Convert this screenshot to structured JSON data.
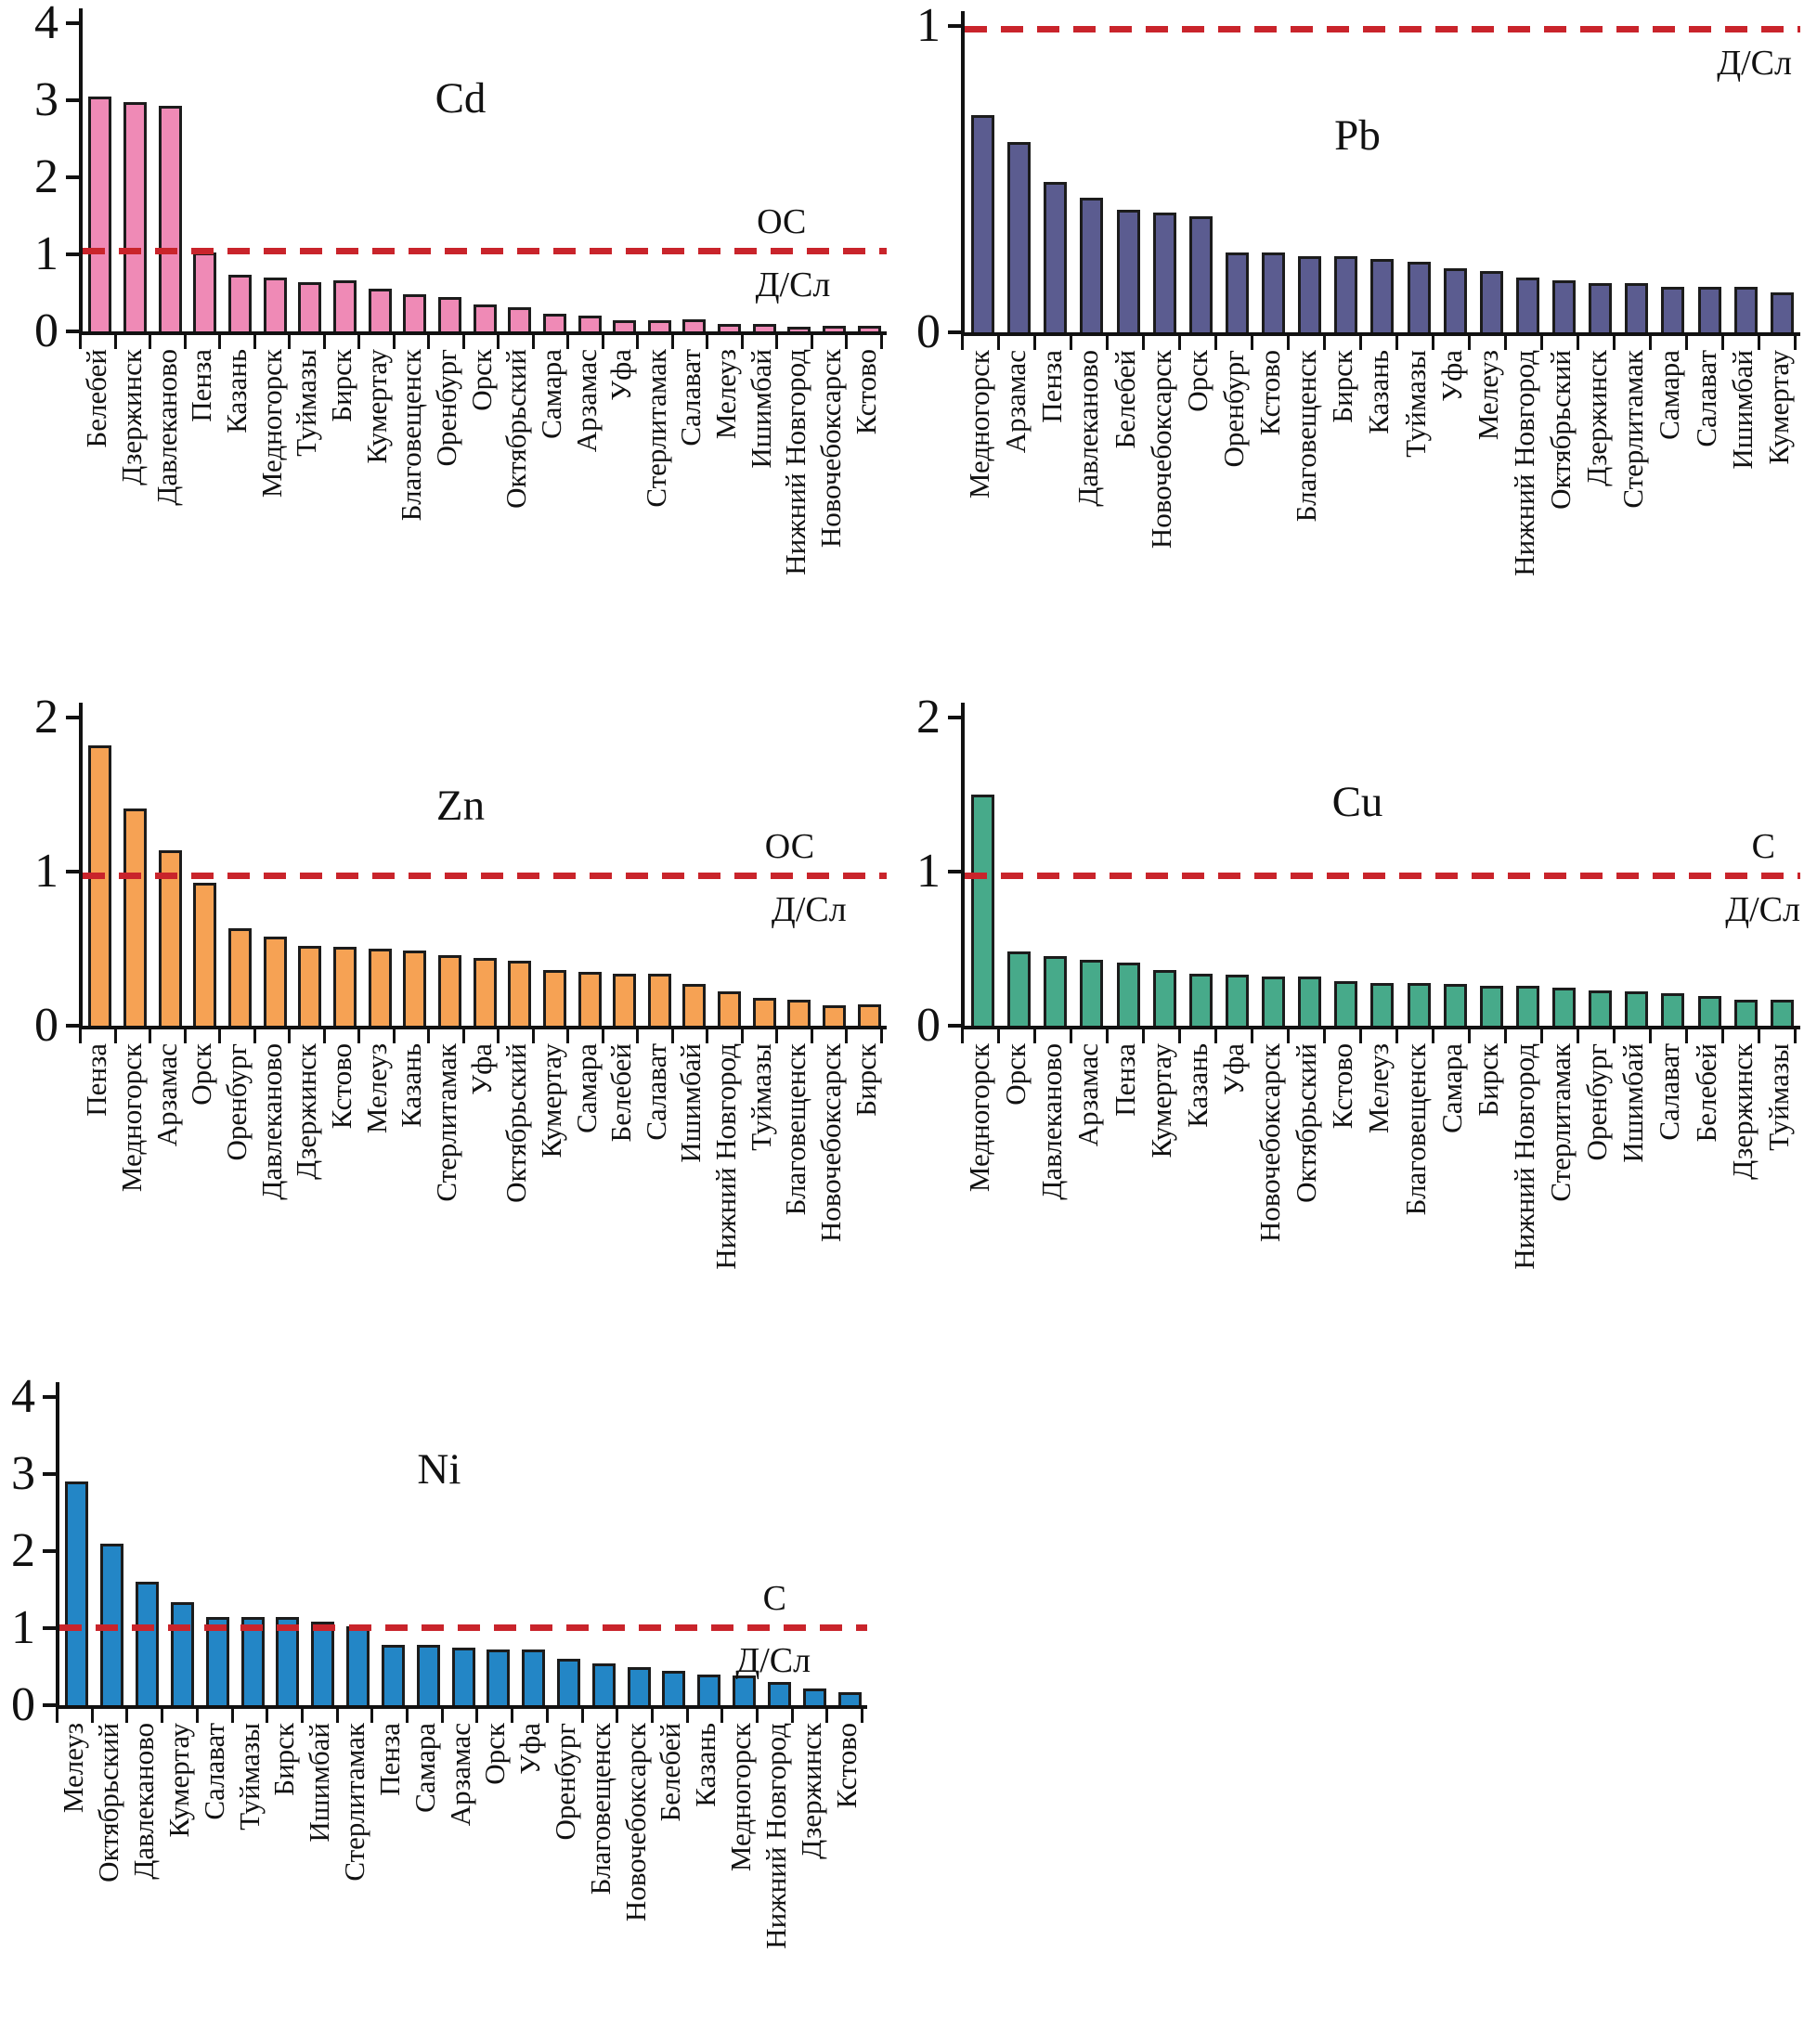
{
  "figure": {
    "background_hex": "#ffffff",
    "axis_color_hex": "#111111",
    "bar_border_hex": "#1c1c1c",
    "threshold_color_hex": "#c9242b"
  },
  "chart_data": [
    {
      "type": "bar",
      "panel": "top-left",
      "title": "Cd",
      "ylim": [
        0,
        4
      ],
      "yticks": [
        0,
        1,
        2,
        3,
        4
      ],
      "bar_color_hex": "#ef8ab6",
      "threshold_line": {
        "value": 1.0,
        "color_hex": "#c9242b",
        "label_above": "ОС",
        "label_below": "Д/Сл"
      },
      "categories": [
        "Белебей",
        "Дзержинск",
        "Давлеканово",
        "Пенза",
        "Казань",
        "Медногорск",
        "Туймазы",
        "Бирск",
        "Кумертау",
        "Благовещенск",
        "Оренбург",
        "Орск",
        "Октябрьский",
        "Самара",
        "Арзамас",
        "Уфа",
        "Стерлитамак",
        "Салават",
        "Мелеуз",
        "Ишимбай",
        "Нижний Новгород",
        "Новочебоксарск",
        "Кстово"
      ],
      "values": [
        3.05,
        2.98,
        2.93,
        1.02,
        0.74,
        0.7,
        0.64,
        0.66,
        0.55,
        0.48,
        0.44,
        0.35,
        0.31,
        0.23,
        0.21,
        0.15,
        0.15,
        0.16,
        0.1,
        0.1,
        0.06,
        0.07,
        0.07
      ]
    },
    {
      "type": "bar",
      "panel": "top-right",
      "title": "Pb",
      "ylim": [
        0,
        1
      ],
      "yticks": [
        0,
        1
      ],
      "bar_color_hex": "#5b5c90",
      "threshold_line": {
        "value": 1.0,
        "color_hex": "#c9242b",
        "label_above": "",
        "label_below": "Д/Сл"
      },
      "categories": [
        "Медногорск",
        "Арзамас",
        "Пенза",
        "Давлеканово",
        "Белебей",
        "Новочебоксарск",
        "Орск",
        "Оренбург",
        "Кстово",
        "Благовещенск",
        "Бирск",
        "Казань",
        "Туймазы",
        "Уфа",
        "Мелеуз",
        "Нижний Новгород",
        "Октябрьский",
        "Дзержинск",
        "Стерлитамак",
        "Самара",
        "Салават",
        "Ишимбай",
        "Кумертау"
      ],
      "values": [
        0.71,
        0.62,
        0.49,
        0.44,
        0.4,
        0.39,
        0.38,
        0.26,
        0.26,
        0.25,
        0.25,
        0.24,
        0.23,
        0.21,
        0.2,
        0.18,
        0.17,
        0.16,
        0.16,
        0.15,
        0.15,
        0.15,
        0.13
      ]
    },
    {
      "type": "bar",
      "panel": "middle-left",
      "title": "Zn",
      "ylim": [
        0,
        2
      ],
      "yticks": [
        0,
        1,
        2
      ],
      "bar_color_hex": "#f6a254",
      "threshold_line": {
        "value": 0.95,
        "color_hex": "#c9242b",
        "label_above": "ОС",
        "label_below": "Д/Сл"
      },
      "categories": [
        "Пенза",
        "Медногорск",
        "Арзамас",
        "Орск",
        "Оренбург",
        "Давлеканово",
        "Дзержинск",
        "Кстово",
        "Мелеуз",
        "Казань",
        "Стерлитамак",
        "Уфа",
        "Октябрьский",
        "Кумертау",
        "Самара",
        "Белебей",
        "Салават",
        "Ишимбай",
        "Нижний Новгород",
        "Туймазы",
        "Благовещенск",
        "Новочебоксарск",
        "Бирск"
      ],
      "values": [
        1.82,
        1.41,
        1.14,
        0.93,
        0.63,
        0.58,
        0.52,
        0.51,
        0.5,
        0.49,
        0.46,
        0.44,
        0.42,
        0.36,
        0.35,
        0.34,
        0.34,
        0.27,
        0.22,
        0.18,
        0.17,
        0.13,
        0.14
      ]
    },
    {
      "type": "bar",
      "panel": "middle-right",
      "title": "Cu",
      "ylim": [
        0,
        2
      ],
      "yticks": [
        0,
        1,
        2
      ],
      "bar_color_hex": "#47aa8a",
      "threshold_line": {
        "value": 0.95,
        "color_hex": "#c9242b",
        "label_above": "С",
        "label_below": "Д/Сл"
      },
      "categories": [
        "Медногорск",
        "Орск",
        "Давлеканово",
        "Арзамас",
        "Пенза",
        "Кумертау",
        "Казань",
        "Уфа",
        "Новочебоксарск",
        "Октябрьский",
        "Кстово",
        "Мелеуз",
        "Благовещенск",
        "Самара",
        "Бирск",
        "Нижний Новгород",
        "Стерлитамак",
        "Оренбург",
        "Ишимбай",
        "Салават",
        "Белебей",
        "Дзержинск",
        "Туймазы"
      ],
      "values": [
        1.5,
        0.48,
        0.45,
        0.43,
        0.41,
        0.36,
        0.34,
        0.33,
        0.32,
        0.32,
        0.29,
        0.28,
        0.28,
        0.27,
        0.26,
        0.26,
        0.25,
        0.23,
        0.22,
        0.21,
        0.19,
        0.17,
        0.17
      ]
    },
    {
      "type": "bar",
      "panel": "bottom-left",
      "title": "Ni",
      "ylim": [
        0,
        4
      ],
      "yticks": [
        0,
        1,
        2,
        3,
        4
      ],
      "bar_color_hex": "#2386c6",
      "threshold_line": {
        "value": 0.97,
        "color_hex": "#c9242b",
        "label_above": "С",
        "label_below": "Д/Сл"
      },
      "categories": [
        "Мелеуз",
        "Октябрьский",
        "Давлеканово",
        "Кумертау",
        "Салават",
        "Туймазы",
        "Бирск",
        "Ишимбай",
        "Стерлитамак",
        "Пенза",
        "Самара",
        "Арзамас",
        "Орск",
        "Уфа",
        "Оренбург",
        "Благовещенск",
        "Новочебоксарск",
        "Белебей",
        "Казань",
        "Медногорск",
        "Нижний Новгород",
        "Дзержинск",
        "Кстово"
      ],
      "values": [
        2.9,
        2.1,
        1.6,
        1.34,
        1.14,
        1.14,
        1.14,
        1.09,
        1.02,
        0.78,
        0.78,
        0.75,
        0.72,
        0.72,
        0.6,
        0.54,
        0.49,
        0.45,
        0.4,
        0.38,
        0.3,
        0.22,
        0.17
      ]
    }
  ]
}
